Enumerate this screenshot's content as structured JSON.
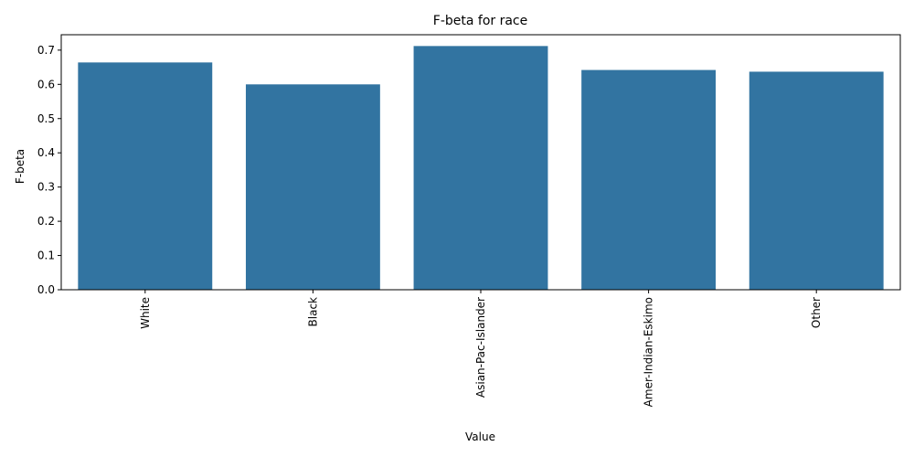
{
  "chart_data": {
    "type": "bar",
    "title": "F-beta for race",
    "xlabel": "Value",
    "ylabel": "F-beta",
    "categories": [
      "White",
      "Black",
      "Asian-Pac-Islander",
      "Amer-Indian-Eskimo",
      "Other"
    ],
    "values": [
      0.664,
      0.6,
      0.712,
      0.642,
      0.637
    ],
    "ylim": [
      0,
      0.745
    ],
    "yticks": [
      "0.0",
      "0.1",
      "0.2",
      "0.3",
      "0.4",
      "0.5",
      "0.6",
      "0.7"
    ],
    "bar_color": "#3274a1",
    "grid": false,
    "legend": "none"
  }
}
